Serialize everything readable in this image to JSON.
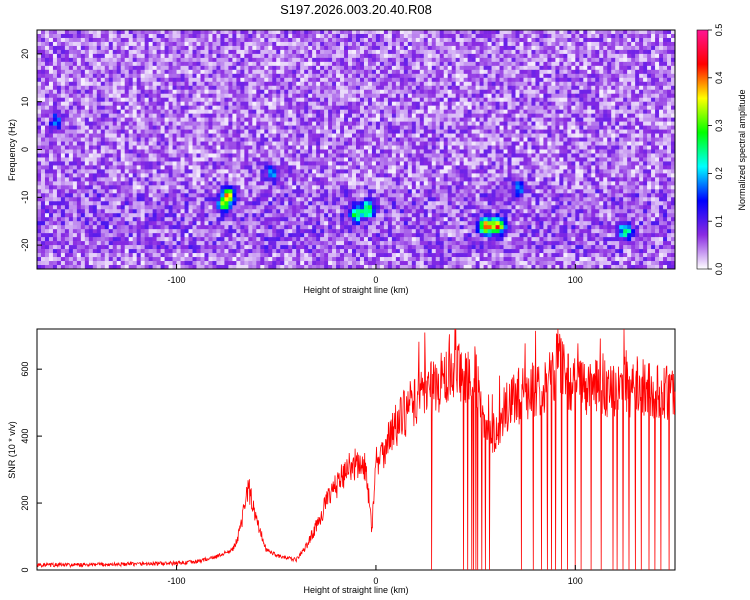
{
  "figure_title": "S197.2026.003.20.40.R08",
  "chart_data": [
    {
      "type": "heatmap",
      "xlabel": "Height of straight line (km)",
      "ylabel": "Frequency (Hz)",
      "xlim": [
        -170,
        150
      ],
      "ylim": [
        -25,
        25
      ],
      "x_ticks": [
        -100,
        0,
        100
      ],
      "y_ticks": [
        20,
        10,
        0,
        -10,
        -20
      ],
      "colorbar": {
        "label": "Normalized spectral amplitude",
        "range": [
          0,
          0.5
        ],
        "ticks": [
          0.0,
          0.1,
          0.2,
          0.3,
          0.4,
          0.5
        ],
        "colors": [
          "#ffffff",
          "#8a2be2",
          "#0000ff",
          "#00ffff",
          "#00ff00",
          "#ffff00",
          "#ff0000",
          "#ff1493"
        ]
      },
      "background_amplitude": [
        0.02,
        0.09
      ],
      "hot_spots": [
        {
          "x": -74,
          "y": -9.5,
          "amp": 0.28
        },
        {
          "x": -76,
          "y": -11.5,
          "amp": 0.22
        },
        {
          "x": -52,
          "y": -5,
          "amp": 0.15
        },
        {
          "x": -4,
          "y": -12.5,
          "amp": 0.25
        },
        {
          "x": -10,
          "y": -13.5,
          "amp": 0.22
        },
        {
          "x": 55,
          "y": -16,
          "amp": 0.38
        },
        {
          "x": 61,
          "y": -16,
          "amp": 0.35
        },
        {
          "x": 72,
          "y": -8,
          "amp": 0.15
        },
        {
          "x": 125,
          "y": -17,
          "amp": 0.22
        },
        {
          "x": -160,
          "y": 6,
          "amp": 0.12
        }
      ]
    },
    {
      "type": "line",
      "xlabel": "Height of straight line (km)",
      "ylabel": "SNR (10 * v/v)",
      "xlim": [
        -170,
        150
      ],
      "ylim": [
        0,
        720
      ],
      "x_ticks": [
        -100,
        0,
        100
      ],
      "y_ticks": [
        0,
        200,
        400,
        600
      ],
      "series": [
        {
          "color": "#ff0000",
          "x": [
            -170,
            -150,
            -120,
            -100,
            -90,
            -80,
            -72,
            -68,
            -64,
            -60,
            -55,
            -48,
            -40,
            -35,
            -30,
            -25,
            -20,
            -15,
            -10,
            -5,
            -2,
            0,
            2,
            5,
            10,
            15,
            20,
            25,
            30,
            35,
            40,
            45,
            50,
            52,
            55,
            58,
            60,
            62,
            65,
            70,
            75,
            80,
            85,
            88,
            90,
            92,
            95,
            98,
            100,
            105,
            110,
            115,
            120,
            125,
            130,
            135,
            140,
            145,
            150
          ],
          "values": [
            15,
            15,
            18,
            20,
            25,
            40,
            60,
            120,
            250,
            150,
            60,
            40,
            30,
            70,
            130,
            200,
            250,
            300,
            320,
            300,
            120,
            350,
            330,
            380,
            430,
            470,
            510,
            540,
            550,
            570,
            580,
            590,
            580,
            500,
            400,
            400,
            420,
            440,
            480,
            510,
            530,
            540,
            560,
            580,
            610,
            640,
            580,
            560,
            550,
            550,
            540,
            540,
            540,
            540,
            540,
            545,
            535,
            530,
            520
          ]
        }
      ],
      "dropout_x": [
        28,
        44,
        46,
        48,
        49,
        50,
        51,
        53,
        55,
        57,
        73,
        79,
        83,
        86,
        88,
        90,
        93,
        96,
        100,
        103,
        108,
        113,
        119,
        121,
        124,
        127,
        130,
        133,
        137,
        140,
        143,
        147
      ]
    }
  ]
}
